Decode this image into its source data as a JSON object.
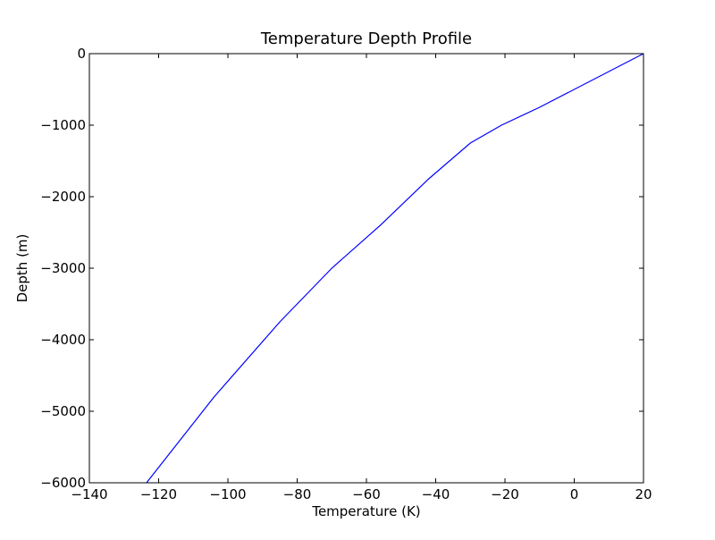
{
  "chart_data": {
    "type": "line",
    "title": "Temperature Depth Profile",
    "xlabel": "Temperature (K)",
    "ylabel": "Depth (m)",
    "xlim": [
      -140,
      20
    ],
    "ylim": [
      -6000,
      0
    ],
    "xticks": [
      -140,
      -120,
      -100,
      -80,
      -60,
      -40,
      -20,
      0,
      20
    ],
    "yticks": [
      0,
      -1000,
      -2000,
      -3000,
      -4000,
      -5000,
      -6000
    ],
    "grid": false,
    "series": [
      {
        "color": "#0000ff",
        "x": [
          20,
          -10,
          -21,
          -30,
          -42,
          -56,
          -70,
          -85,
          -104,
          -123.5
        ],
        "y": [
          0,
          -750,
          -1000,
          -1250,
          -1750,
          -2400,
          -3000,
          -3750,
          -4800,
          -6000
        ]
      }
    ]
  }
}
